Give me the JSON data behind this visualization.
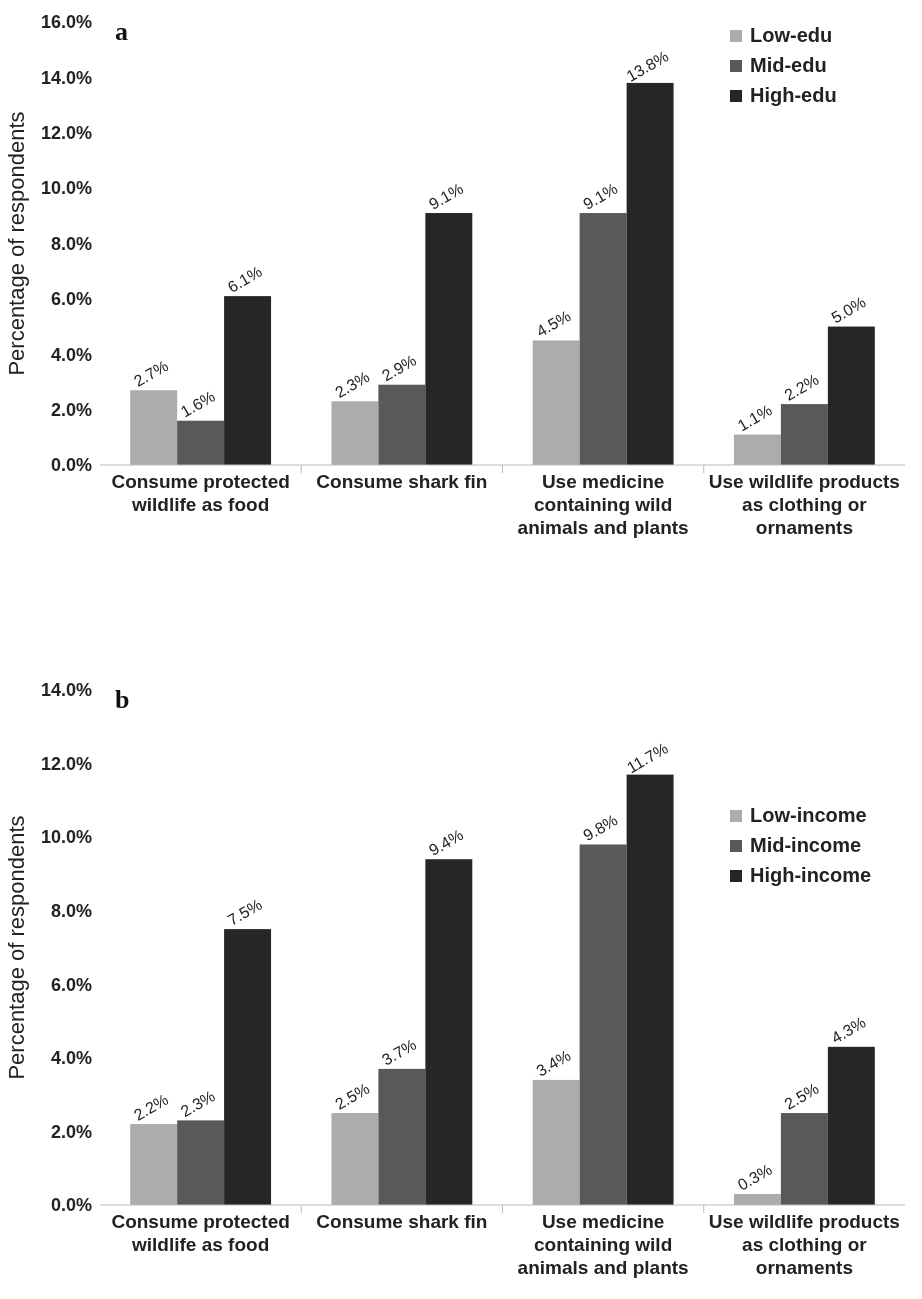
{
  "chart_data": [
    {
      "type": "bar",
      "title": "a",
      "ylabel": "Percentage of respondents",
      "categories": [
        "Consume protected wildlife as food",
        "Consume shark fin",
        "Use medicine containing wild animals and plants",
        "Use wildlife products as clothing or ornaments"
      ],
      "series": [
        {
          "name": "Low-edu",
          "color": "#acacac",
          "values": [
            2.7,
            2.3,
            4.5,
            1.1
          ],
          "value_labels": [
            "2.7%",
            "2.3%",
            "4.5%",
            "1.1%"
          ]
        },
        {
          "name": "Mid-edu",
          "color": "#595959",
          "values": [
            1.6,
            2.9,
            9.1,
            2.2
          ],
          "value_labels": [
            "1.6%",
            "2.9%",
            "9.1%",
            "2.2%"
          ]
        },
        {
          "name": "High-edu",
          "color": "#262626",
          "values": [
            6.1,
            9.1,
            13.8,
            5.0
          ],
          "value_labels": [
            "6.1%",
            "9.1%",
            "13.8%",
            "5.0%"
          ]
        }
      ],
      "ylim": [
        0,
        16
      ],
      "yticks": [
        {
          "value": 0,
          "label": "0.0%"
        },
        {
          "value": 2,
          "label": "2.0%"
        },
        {
          "value": 4,
          "label": "4.0%"
        },
        {
          "value": 6,
          "label": "6.0%"
        },
        {
          "value": 8,
          "label": "8.0%"
        },
        {
          "value": 10,
          "label": "10.0%"
        },
        {
          "value": 12,
          "label": "12.0%"
        },
        {
          "value": 14,
          "label": "14.0%"
        },
        {
          "value": 16,
          "label": "16.0%"
        }
      ],
      "grid": false,
      "legend": "top right"
    },
    {
      "type": "bar",
      "title": "b",
      "ylabel": "Percentage of respondents",
      "categories": [
        "Consume protected wildlife as food",
        "Consume shark fin",
        "Use medicine containing wild animals and plants",
        "Use wildlife products as clothing or ornaments"
      ],
      "series": [
        {
          "name": "Low-income",
          "color": "#acacac",
          "values": [
            2.2,
            2.5,
            3.4,
            0.3
          ],
          "value_labels": [
            "2.2%",
            "2.5%",
            "3.4%",
            "0.3%"
          ]
        },
        {
          "name": "Mid-income",
          "color": "#595959",
          "values": [
            2.3,
            3.7,
            9.8,
            2.5
          ],
          "value_labels": [
            "2.3%",
            "3.7%",
            "9.8%",
            "2.5%"
          ]
        },
        {
          "name": "High-income",
          "color": "#262626",
          "values": [
            7.5,
            9.4,
            11.7,
            4.3
          ],
          "value_labels": [
            "7.5%",
            "9.4%",
            "11.7%",
            "4.3%"
          ]
        }
      ],
      "ylim": [
        0,
        14
      ],
      "yticks": [
        {
          "value": 0,
          "label": "0.0%"
        },
        {
          "value": 2,
          "label": "2.0%"
        },
        {
          "value": 4,
          "label": "4.0%"
        },
        {
          "value": 6,
          "label": "6.0%"
        },
        {
          "value": 8,
          "label": "8.0%"
        },
        {
          "value": 10,
          "label": "10.0%"
        },
        {
          "value": 12,
          "label": "12.0%"
        },
        {
          "value": 14,
          "label": "14.0%"
        }
      ],
      "grid": false,
      "legend": "right"
    }
  ]
}
